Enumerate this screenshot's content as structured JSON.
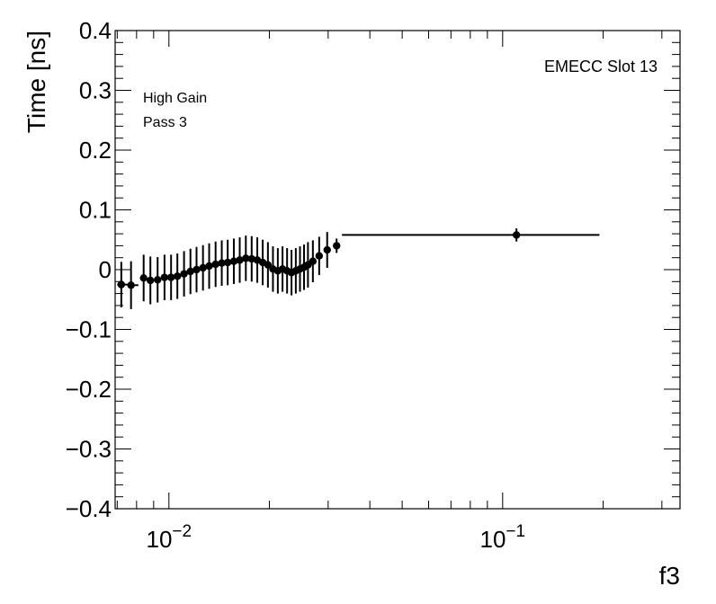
{
  "chart_data": {
    "type": "scatter",
    "title": "",
    "xlabel": "f3",
    "ylabel": "Time [ns]",
    "x_scale": "log",
    "xlim": [
      0.0069,
      0.34
    ],
    "ylim": [
      -0.4,
      0.4
    ],
    "y_ticks": [
      {
        "value": 0.4,
        "label": "0.4"
      },
      {
        "value": 0.3,
        "label": "0.3"
      },
      {
        "value": 0.2,
        "label": "0.2"
      },
      {
        "value": 0.1,
        "label": "0.1"
      },
      {
        "value": 0.0,
        "label": "0"
      },
      {
        "value": -0.1,
        "label": "−0.1"
      },
      {
        "value": -0.2,
        "label": "−0.2"
      },
      {
        "value": -0.3,
        "label": "−0.3"
      },
      {
        "value": -0.4,
        "label": "−0.4"
      }
    ],
    "x_ticks": [
      {
        "value": 0.01,
        "base": "10",
        "exp": "−2"
      },
      {
        "value": 0.1,
        "base": "10",
        "exp": "−1"
      }
    ],
    "annotations": {
      "top_right": "EMECC Slot 13",
      "gain": "High Gain",
      "pass": "Pass 3"
    },
    "points": [
      {
        "x": 0.0072,
        "y": -0.025,
        "err": 0.038,
        "xlo": 0.007,
        "xhi": 0.00755
      },
      {
        "x": 0.0077,
        "y": -0.026,
        "err": 0.04,
        "xlo": 0.00755,
        "xhi": 0.0081
      },
      {
        "x": 0.0084,
        "y": -0.014,
        "err": 0.039,
        "xlo": 0.0082,
        "xhi": 0.0086
      },
      {
        "x": 0.0088,
        "y": -0.018,
        "err": 0.04,
        "xlo": 0.00862,
        "xhi": 0.009
      },
      {
        "x": 0.00925,
        "y": -0.017,
        "err": 0.038,
        "xlo": 0.00905,
        "xhi": 0.00945
      },
      {
        "x": 0.0097,
        "y": -0.013,
        "err": 0.038,
        "xlo": 0.0095,
        "xhi": 0.0099
      },
      {
        "x": 0.01015,
        "y": -0.013,
        "err": 0.038,
        "xlo": 0.00995,
        "xhi": 0.01035
      },
      {
        "x": 0.0106,
        "y": -0.011,
        "err": 0.038,
        "xlo": 0.0104,
        "xhi": 0.0108
      },
      {
        "x": 0.0111,
        "y": -0.007,
        "err": 0.038,
        "xlo": 0.0109,
        "xhi": 0.0113
      },
      {
        "x": 0.0116,
        "y": -0.003,
        "err": 0.038,
        "xlo": 0.0114,
        "xhi": 0.0118
      },
      {
        "x": 0.0121,
        "y": 0.0,
        "err": 0.038,
        "xlo": 0.0119,
        "xhi": 0.0123
      },
      {
        "x": 0.01265,
        "y": 0.003,
        "err": 0.038,
        "xlo": 0.01245,
        "xhi": 0.01285
      },
      {
        "x": 0.0132,
        "y": 0.006,
        "err": 0.038,
        "xlo": 0.013,
        "xhi": 0.0134
      },
      {
        "x": 0.0138,
        "y": 0.009,
        "err": 0.038,
        "xlo": 0.0136,
        "xhi": 0.014
      },
      {
        "x": 0.0144,
        "y": 0.011,
        "err": 0.038,
        "xlo": 0.0142,
        "xhi": 0.0146
      },
      {
        "x": 0.015,
        "y": 0.012,
        "err": 0.038,
        "xlo": 0.0148,
        "xhi": 0.0152
      },
      {
        "x": 0.01565,
        "y": 0.014,
        "err": 0.038,
        "xlo": 0.01545,
        "xhi": 0.01585
      },
      {
        "x": 0.0163,
        "y": 0.016,
        "err": 0.038,
        "xlo": 0.0161,
        "xhi": 0.0165
      },
      {
        "x": 0.017,
        "y": 0.019,
        "err": 0.038,
        "xlo": 0.0168,
        "xhi": 0.0172
      },
      {
        "x": 0.0177,
        "y": 0.018,
        "err": 0.038,
        "xlo": 0.0175,
        "xhi": 0.0179
      },
      {
        "x": 0.0184,
        "y": 0.016,
        "err": 0.038,
        "xlo": 0.0182,
        "xhi": 0.0186
      },
      {
        "x": 0.0191,
        "y": 0.012,
        "err": 0.038,
        "xlo": 0.0189,
        "xhi": 0.0193
      },
      {
        "x": 0.0198,
        "y": 0.008,
        "err": 0.038,
        "xlo": 0.0196,
        "xhi": 0.02
      },
      {
        "x": 0.0205,
        "y": 0.001,
        "err": 0.038,
        "xlo": 0.0203,
        "xhi": 0.0207
      },
      {
        "x": 0.0212,
        "y": -0.002,
        "err": 0.038,
        "xlo": 0.021,
        "xhi": 0.0214
      },
      {
        "x": 0.0219,
        "y": 0.001,
        "err": 0.038,
        "xlo": 0.0217,
        "xhi": 0.0221
      },
      {
        "x": 0.0226,
        "y": -0.002,
        "err": 0.038,
        "xlo": 0.0224,
        "xhi": 0.0228
      },
      {
        "x": 0.0233,
        "y": -0.005,
        "err": 0.038,
        "xlo": 0.0231,
        "xhi": 0.0235
      },
      {
        "x": 0.024,
        "y": -0.002,
        "err": 0.038,
        "xlo": 0.0238,
        "xhi": 0.0242
      },
      {
        "x": 0.0247,
        "y": 0.001,
        "err": 0.038,
        "xlo": 0.0245,
        "xhi": 0.0249
      },
      {
        "x": 0.0254,
        "y": 0.004,
        "err": 0.038,
        "xlo": 0.0252,
        "xhi": 0.0256
      },
      {
        "x": 0.0261,
        "y": 0.008,
        "err": 0.038,
        "xlo": 0.0259,
        "xhi": 0.0263
      },
      {
        "x": 0.027,
        "y": 0.014,
        "err": 0.035,
        "xlo": 0.0268,
        "xhi": 0.0272
      },
      {
        "x": 0.0282,
        "y": 0.023,
        "err": 0.032,
        "xlo": 0.028,
        "xhi": 0.0284
      },
      {
        "x": 0.0298,
        "y": 0.033,
        "err": 0.03,
        "xlo": 0.0295,
        "xhi": 0.0301
      },
      {
        "x": 0.0318,
        "y": 0.04,
        "err": 0.012,
        "xlo": 0.0312,
        "xhi": 0.0326
      },
      {
        "x": 0.11,
        "y": 0.058,
        "err": 0.011,
        "xlo": 0.033,
        "xhi": 0.195
      }
    ]
  }
}
